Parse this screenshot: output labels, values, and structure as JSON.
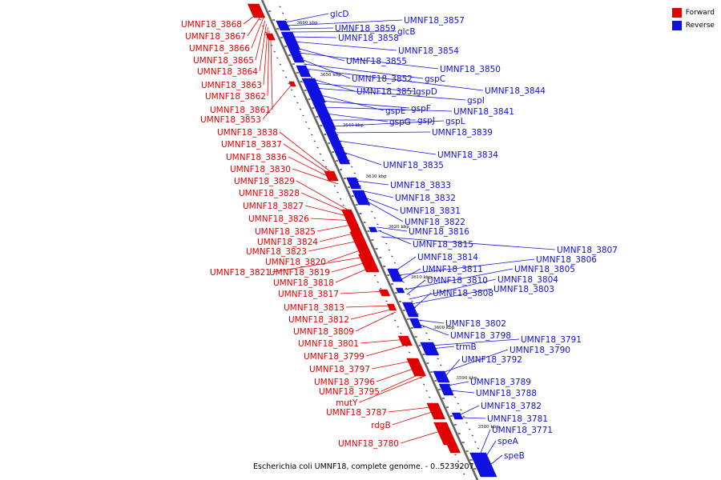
{
  "caption": "Escherichia coli UMNF18, complete genome. - 0..5239207",
  "legend": [
    {
      "label": "Forward",
      "color": "#e00000"
    },
    {
      "label": "Reverse",
      "color": "#1010e0"
    }
  ],
  "ticks": [
    "3660 kbp",
    "3650 kbp",
    "3640 kbp",
    "3630 kbp",
    "3620 kbp",
    "3610 kbp",
    "3600 kbp",
    "3590 kbp",
    "3580 kbp"
  ],
  "forward_labels": [
    "UMNF18_3868",
    "UMNF18_3867",
    "UMNF18_3866",
    "UMNF18_3865",
    "UMNF18_3864",
    "UMNF18_3863",
    "UMNF18_3862",
    "UMNF18_3861",
    "UMNF18_3853",
    "UMNF18_3838",
    "UMNF18_3837",
    "UMNF18_3836",
    "UMNF18_3830",
    "UMNF18_3829",
    "UMNF18_3828",
    "UMNF18_3827",
    "UMNF18_3826",
    "UMNF18_3825",
    "UMNF18_3824",
    "UMNF18_3823",
    "UMNF18_3820",
    "UMNF18_3821",
    "UMNF18_3819",
    "UMNF18_3818",
    "UMNF18_3817",
    "UMNF18_3813",
    "UMNF18_3812",
    "UMNF18_3809",
    "UMNF18_3801",
    "UMNF18_3799",
    "UMNF18_3797",
    "UMNF18_3796",
    "UMNF18_3795",
    "mutY",
    "UMNF18_3787",
    "rdgB",
    "UMNF18_3780"
  ],
  "reverse_labels": [
    "glcD",
    "UMNF18_3857",
    "UMNF18_3859",
    "glcB",
    "UMNF18_3858",
    "UMNF18_3854",
    "UMNF18_3855",
    "UMNF18_3850",
    "UMNF18_3852",
    "gspC",
    "UMNF18_3844",
    "UMNF18_3851",
    "gspD",
    "gspI",
    "gspE",
    "gspF",
    "UMNF18_3841",
    "gspG",
    "gspJ",
    "gspL",
    "UMNF18_3839",
    "UMNF18_3834",
    "UMNF18_3835",
    "UMNF18_3833",
    "UMNF18_3832",
    "UMNF18_3831",
    "UMNF18_3822",
    "UMNF18_3816",
    "UMNF18_3815",
    "UMNF18_3807",
    "UMNF18_3814",
    "UMNF18_3806",
    "UMNF18_3811",
    "UMNF18_3805",
    "UMNF18_3810",
    "UMNF18_3804",
    "UMNF18_3803",
    "UMNF18_3808",
    "UMNF18_3802",
    "UMNF18_3798",
    "UMNF18_3791",
    "trmB",
    "UMNF18_3790",
    "UMNF18_3792",
    "UMNF18_3789",
    "UMNF18_3788",
    "UMNF18_3782",
    "UMNF18_3781",
    "UMNF18_3771",
    "speA",
    "speB"
  ]
}
